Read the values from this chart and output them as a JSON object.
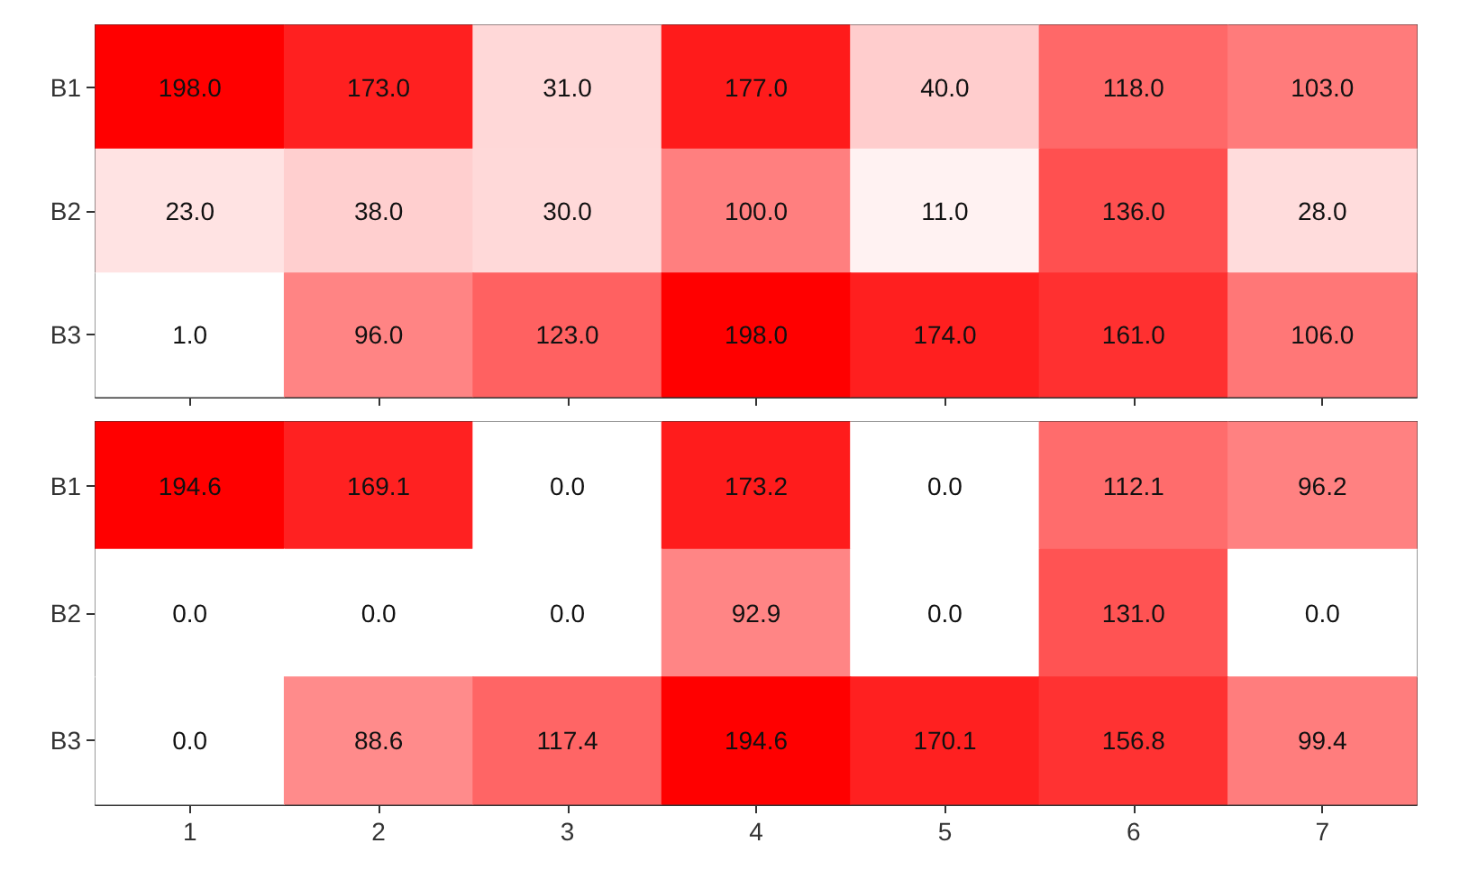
{
  "chart_data": [
    {
      "type": "heatmap",
      "categories": [
        "1",
        "2",
        "3",
        "4",
        "5",
        "6",
        "7"
      ],
      "y_categories": [
        "B1",
        "B2",
        "B3"
      ],
      "tick_labels": "y",
      "cells": [
        [
          198,
          173,
          31,
          177,
          40,
          118,
          103
        ],
        [
          23,
          38,
          30,
          100,
          11,
          136,
          28
        ],
        [
          1,
          96,
          123,
          198,
          174,
          161,
          106
        ]
      ],
      "cell_labels": [
        [
          "198.0",
          "173.0",
          "31.0",
          "177.0",
          "40.0",
          "118.0",
          "103.0"
        ],
        [
          "23.0",
          "38.0",
          "30.0",
          "100.0",
          "11.0",
          "136.0",
          "28.0"
        ],
        [
          "1.0",
          "96.0",
          "123.0",
          "198.0",
          "174.0",
          "161.0",
          "106.0"
        ]
      ]
    },
    {
      "type": "heatmap",
      "categories": [
        "1",
        "2",
        "3",
        "4",
        "5",
        "6",
        "7"
      ],
      "y_categories": [
        "B1",
        "B2",
        "B3"
      ],
      "cells": [
        [
          194.6,
          169.1,
          0,
          173.2,
          0,
          112.1,
          96.2
        ],
        [
          0,
          0,
          0,
          92.9,
          0,
          131,
          0
        ],
        [
          0,
          88.6,
          117.4,
          194.6,
          170.1,
          156.8,
          99.4
        ]
      ],
      "cell_labels": [
        [
          "194.6",
          "169.1",
          "0.0",
          "173.2",
          "0.0",
          "112.1",
          "96.2"
        ],
        [
          "0.0",
          "0.0",
          "0.0",
          "92.9",
          "0.0",
          "131.0",
          "0.0"
        ],
        [
          "0.0",
          "88.6",
          "117.4",
          "194.6",
          "170.1",
          "156.8",
          "99.4"
        ]
      ]
    }
  ]
}
